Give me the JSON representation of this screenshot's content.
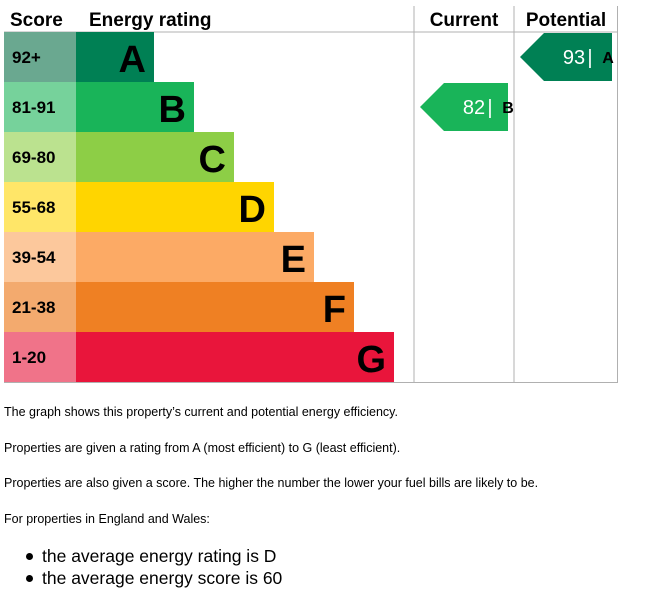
{
  "chart_data": {
    "type": "table",
    "headers": {
      "score": "Score",
      "energy_rating": "Energy rating",
      "current": "Current",
      "potential": "Potential"
    },
    "bands": [
      {
        "score": "92+",
        "letter": "A",
        "bar_color": "#008054",
        "score_bg": "#6aa890"
      },
      {
        "score": "81-91",
        "letter": "B",
        "bar_color": "#19b459",
        "score_bg": "#76d29b"
      },
      {
        "score": "69-80",
        "letter": "C",
        "bar_color": "#8dce46",
        "score_bg": "#bbe28f"
      },
      {
        "score": "55-68",
        "letter": "D",
        "bar_color": "#ffd500",
        "score_bg": "#ffe668"
      },
      {
        "score": "39-54",
        "letter": "E",
        "bar_color": "#fcaa65",
        "score_bg": "#fcc89c"
      },
      {
        "score": "21-38",
        "letter": "F",
        "bar_color": "#ef8023",
        "score_bg": "#f3aa6e"
      },
      {
        "score": "1-20",
        "letter": "G",
        "bar_color": "#e9153b",
        "score_bg": "#f07389"
      }
    ],
    "current": {
      "score": 82,
      "letter": "B",
      "band_index": 1,
      "color": "#19b459"
    },
    "potential": {
      "score": 93,
      "letter": "A",
      "band_index": 0,
      "color": "#008054"
    }
  },
  "paragraphs": [
    "The graph shows this property’s current and potential energy efficiency.",
    "Properties are given a rating from A (most efficient) to G (least efficient).",
    "Properties are also given a score. The higher the number the lower your fuel bills are likely to be.",
    "For properties in England and Wales:"
  ],
  "bullets": [
    "the average energy rating is D",
    "the average energy score is 60"
  ]
}
